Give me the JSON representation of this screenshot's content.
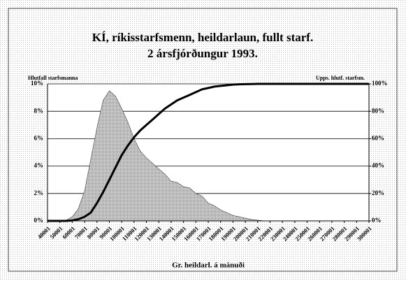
{
  "chart_data": {
    "type": "area-line",
    "title": "KÍ, ríkisstarfsmenn, heildarlaun, fullt starf.",
    "subtitle": "2 ársfjórðungur 1993.",
    "y_label": "Hlutfall starfsmanna",
    "y2_label": "Upps. hlutf. starfsm.",
    "x_label": "Gr. heildarl. á mánuði",
    "categories": [
      "40001",
      null,
      "50001",
      null,
      "60001",
      null,
      "70001",
      null,
      "80001",
      null,
      "90001",
      null,
      "100001",
      null,
      "110001",
      null,
      "120001",
      null,
      "130001",
      null,
      "140001",
      null,
      "150001",
      null,
      "160001",
      null,
      "170001",
      null,
      "180001",
      null,
      "190001",
      null,
      "200001",
      null,
      "210001",
      null,
      "220001",
      null,
      "230001",
      null,
      "240001",
      null,
      "250001",
      null,
      "260001",
      null,
      "270001",
      null,
      "280001",
      null,
      "290001",
      null,
      "300001"
    ],
    "series": [
      {
        "name": "Hlutfall starfsmanna",
        "color": "#bdbdbd",
        "values": [
          0,
          0,
          0,
          0.05,
          0.3,
          0.9,
          2.2,
          4.5,
          6.8,
          8.8,
          9.5,
          9.1,
          8.2,
          7.2,
          6.0,
          5.1,
          4.6,
          4.2,
          3.8,
          3.4,
          2.9,
          2.8,
          2.5,
          2.4,
          2.0,
          1.8,
          1.3,
          1.1,
          0.8,
          0.6,
          0.4,
          0.3,
          0.2,
          0.1,
          0.05,
          0,
          0,
          0,
          0,
          0,
          0,
          0,
          0,
          0,
          0,
          0,
          0,
          0,
          0,
          0,
          0,
          0,
          0
        ]
      },
      {
        "name": "Upps. hlutf. starfsm.",
        "color": "#000000",
        "axis": "y2",
        "values": [
          0,
          0,
          0,
          0,
          0.3,
          1.2,
          3,
          6,
          13,
          21,
          30,
          39,
          48,
          55,
          61,
          66,
          70,
          74,
          78,
          82,
          85,
          88,
          90,
          92,
          94,
          96,
          97,
          98,
          98.5,
          99,
          99.5,
          99.7,
          99.8,
          99.9,
          100,
          100,
          100,
          100,
          100,
          100,
          100,
          100,
          100,
          100,
          100,
          100,
          100,
          100,
          100,
          100,
          100,
          100,
          100
        ]
      }
    ],
    "ylim": [
      0,
      10
    ],
    "yticks": [
      {
        "value": 0,
        "label": "0%"
      },
      {
        "value": 2,
        "label": "2%"
      },
      {
        "value": 4,
        "label": "4%"
      },
      {
        "value": 6,
        "label": "6%"
      },
      {
        "value": 8,
        "label": "8%"
      },
      {
        "value": 10,
        "label": "10%"
      }
    ],
    "y2lim": [
      0,
      100
    ],
    "y2ticks": [
      {
        "value": 0,
        "label": "0%"
      },
      {
        "value": 20,
        "label": "20%"
      },
      {
        "value": 40,
        "label": "40%"
      },
      {
        "value": 60,
        "label": "60%"
      },
      {
        "value": 80,
        "label": "80%"
      },
      {
        "value": 100,
        "label": "100%"
      }
    ],
    "grid": true
  }
}
